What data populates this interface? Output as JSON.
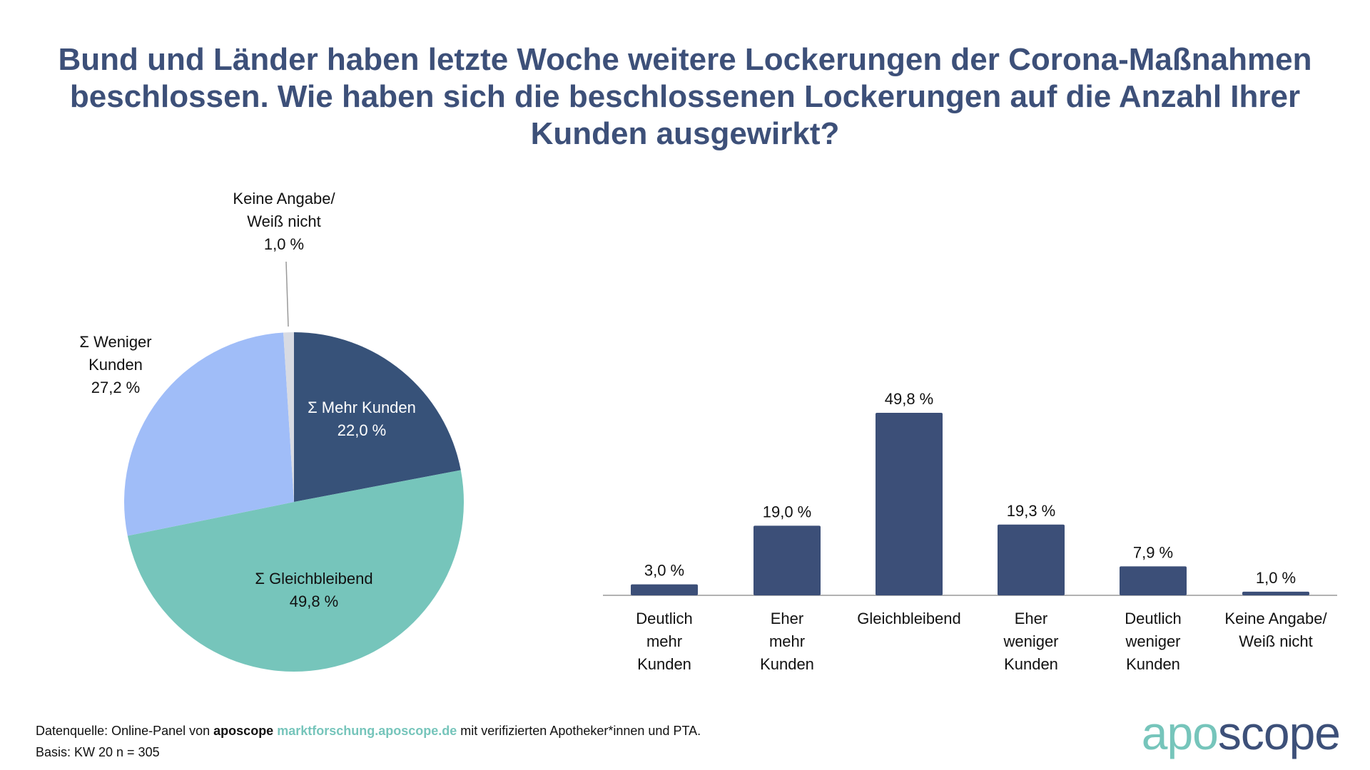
{
  "title": "Bund und Länder haben letzte Woche weitere Lockerungen der Corona-Maßnahmen beschlossen. Wie haben sich die beschlossenen Lockerungen auf die Anzahl Ihrer Kunden ausgewirkt?",
  "chart_data": [
    {
      "type": "pie",
      "slices": [
        {
          "label": [
            "Σ Mehr Kunden"
          ],
          "value": 22.0,
          "value_label": "22,0 %",
          "color": "#375279"
        },
        {
          "label": [
            "Σ Gleichbleibend"
          ],
          "value": 49.8,
          "value_label": "49,8 %",
          "color": "#76c5bb"
        },
        {
          "label": [
            "Σ Weniger",
            "Kunden"
          ],
          "value": 27.2,
          "value_label": "27,2 %",
          "color": "#a0bdf8"
        },
        {
          "label": [
            "Keine Angabe/",
            "Weiß nicht"
          ],
          "value": 1.0,
          "value_label": "1,0 %",
          "color": "#d8dbe3"
        }
      ]
    },
    {
      "type": "bar",
      "color": "#3c4f78",
      "categories": [
        [
          "Deutlich",
          "mehr",
          "Kunden"
        ],
        [
          "Eher",
          "mehr",
          "Kunden"
        ],
        [
          "Gleichbleibend"
        ],
        [
          "Eher",
          "weniger",
          "Kunden"
        ],
        [
          "Deutlich",
          "weniger",
          "Kunden"
        ],
        [
          "Keine Angabe/",
          "Weiß nicht"
        ]
      ],
      "values": [
        3.0,
        19.0,
        49.8,
        19.3,
        7.9,
        1.0
      ],
      "value_labels": [
        "3,0 %",
        "19,0 %",
        "49,8 %",
        "19,3 %",
        "7,9 %",
        "1,0 %"
      ],
      "ylim": [
        0,
        60
      ]
    }
  ],
  "footer": {
    "source_prefix": "Datenquelle: Online-Panel von ",
    "source_brand": "aposcope",
    "source_link": "marktforschung.aposcope.de",
    "source_suffix": " mit verifizierten Apotheker*innen und PTA.",
    "basis": "Basis: KW 20 n = 305"
  },
  "logo": {
    "part1": "apo",
    "part2": "scope",
    "color1": "#76c5bb",
    "color2": "#3d5079"
  }
}
